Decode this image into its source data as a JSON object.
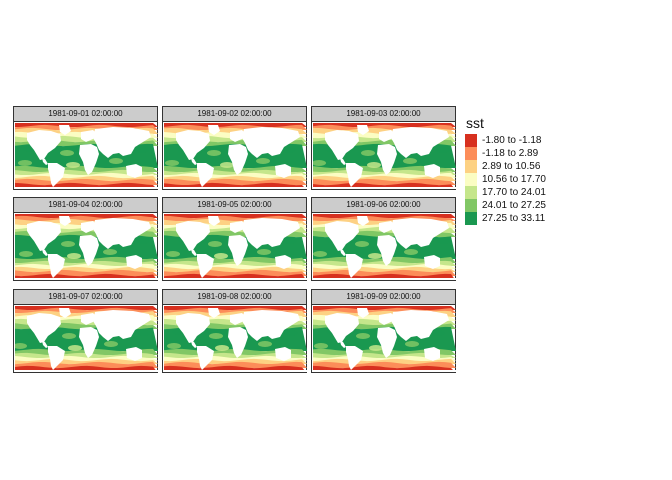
{
  "map": {
    "variable": "sst",
    "legend": {
      "title": "sst",
      "classes": [
        {
          "label": "-1.80 to -1.18",
          "color": "#d7301f"
        },
        {
          "label": "-1.18 to 2.89",
          "color": "#fc8d59"
        },
        {
          "label": "2.89 to 10.56",
          "color": "#fdd183"
        },
        {
          "label": "10.56 to 17.70",
          "color": "#fbfdc3"
        },
        {
          "label": "17.70 to 24.01",
          "color": "#c5e68b"
        },
        {
          "label": "24.01 to 27.25",
          "color": "#81c765"
        },
        {
          "label": "27.25 to 33.11",
          "color": "#1a9850"
        }
      ]
    },
    "land_color": "#ffffff",
    "panels": [
      {
        "title": "1981-09-01 02:00:00"
      },
      {
        "title": "1981-09-02 02:00:00"
      },
      {
        "title": "1981-09-03 02:00:00"
      },
      {
        "title": "1981-09-04 02:00:00"
      },
      {
        "title": "1981-09-05 02:00:00"
      },
      {
        "title": "1981-09-06 02:00:00"
      },
      {
        "title": "1981-09-07 02:00:00"
      },
      {
        "title": "1981-09-08 02:00:00"
      },
      {
        "title": "1981-09-09 02:00:00"
      }
    ]
  }
}
